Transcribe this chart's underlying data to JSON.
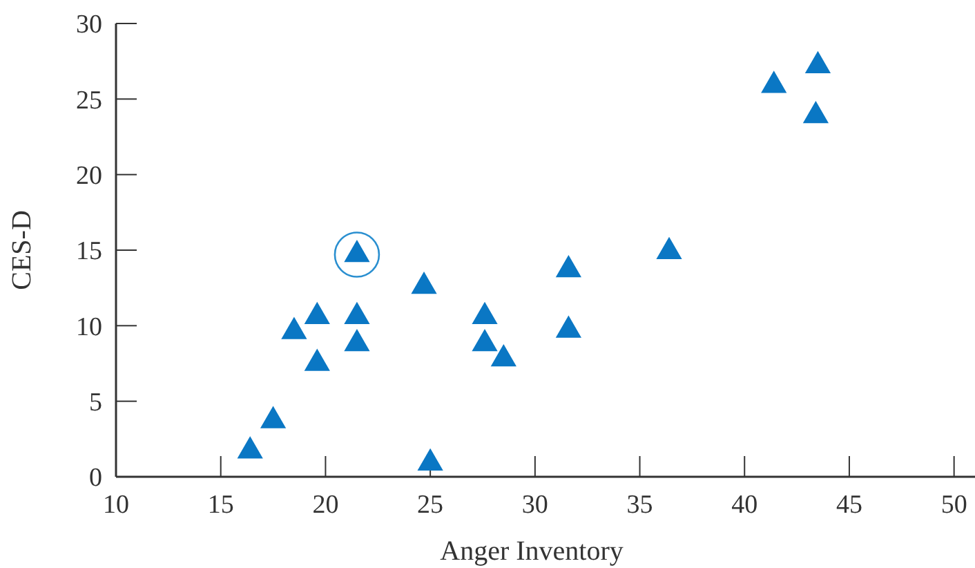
{
  "chart_data": {
    "type": "scatter",
    "xlabel": "Anger Inventory",
    "ylabel": "CES-D",
    "series": [
      {
        "color": "#0a77c4",
        "marker": "triangle",
        "x": [
          16.4,
          17.5,
          18.5,
          19.6,
          19.6,
          21.5,
          21.5,
          21.5,
          24.7,
          25.0,
          27.6,
          27.6,
          28.5,
          31.6,
          31.6,
          36.4,
          41.4,
          43.5,
          43.4
        ],
        "values": [
          1.7,
          3.7,
          9.6,
          10.6,
          7.5,
          14.7,
          10.6,
          8.8,
          12.6,
          0.9,
          10.6,
          8.8,
          7.8,
          13.7,
          9.7,
          14.9,
          25.9,
          27.2,
          23.9
        ]
      },
      {
        "color": "#2a8fd0",
        "marker": "circle",
        "x": [
          21.5
        ],
        "values": [
          14.7
        ]
      }
    ],
    "xlim": [
      10,
      51
    ],
    "xticks": [
      10,
      15,
      20,
      25,
      30,
      35,
      40,
      45,
      50
    ],
    "ylim": [
      0,
      30
    ],
    "yticks": [
      0,
      5,
      10,
      15,
      20,
      25,
      30
    ],
    "grid": false
  }
}
